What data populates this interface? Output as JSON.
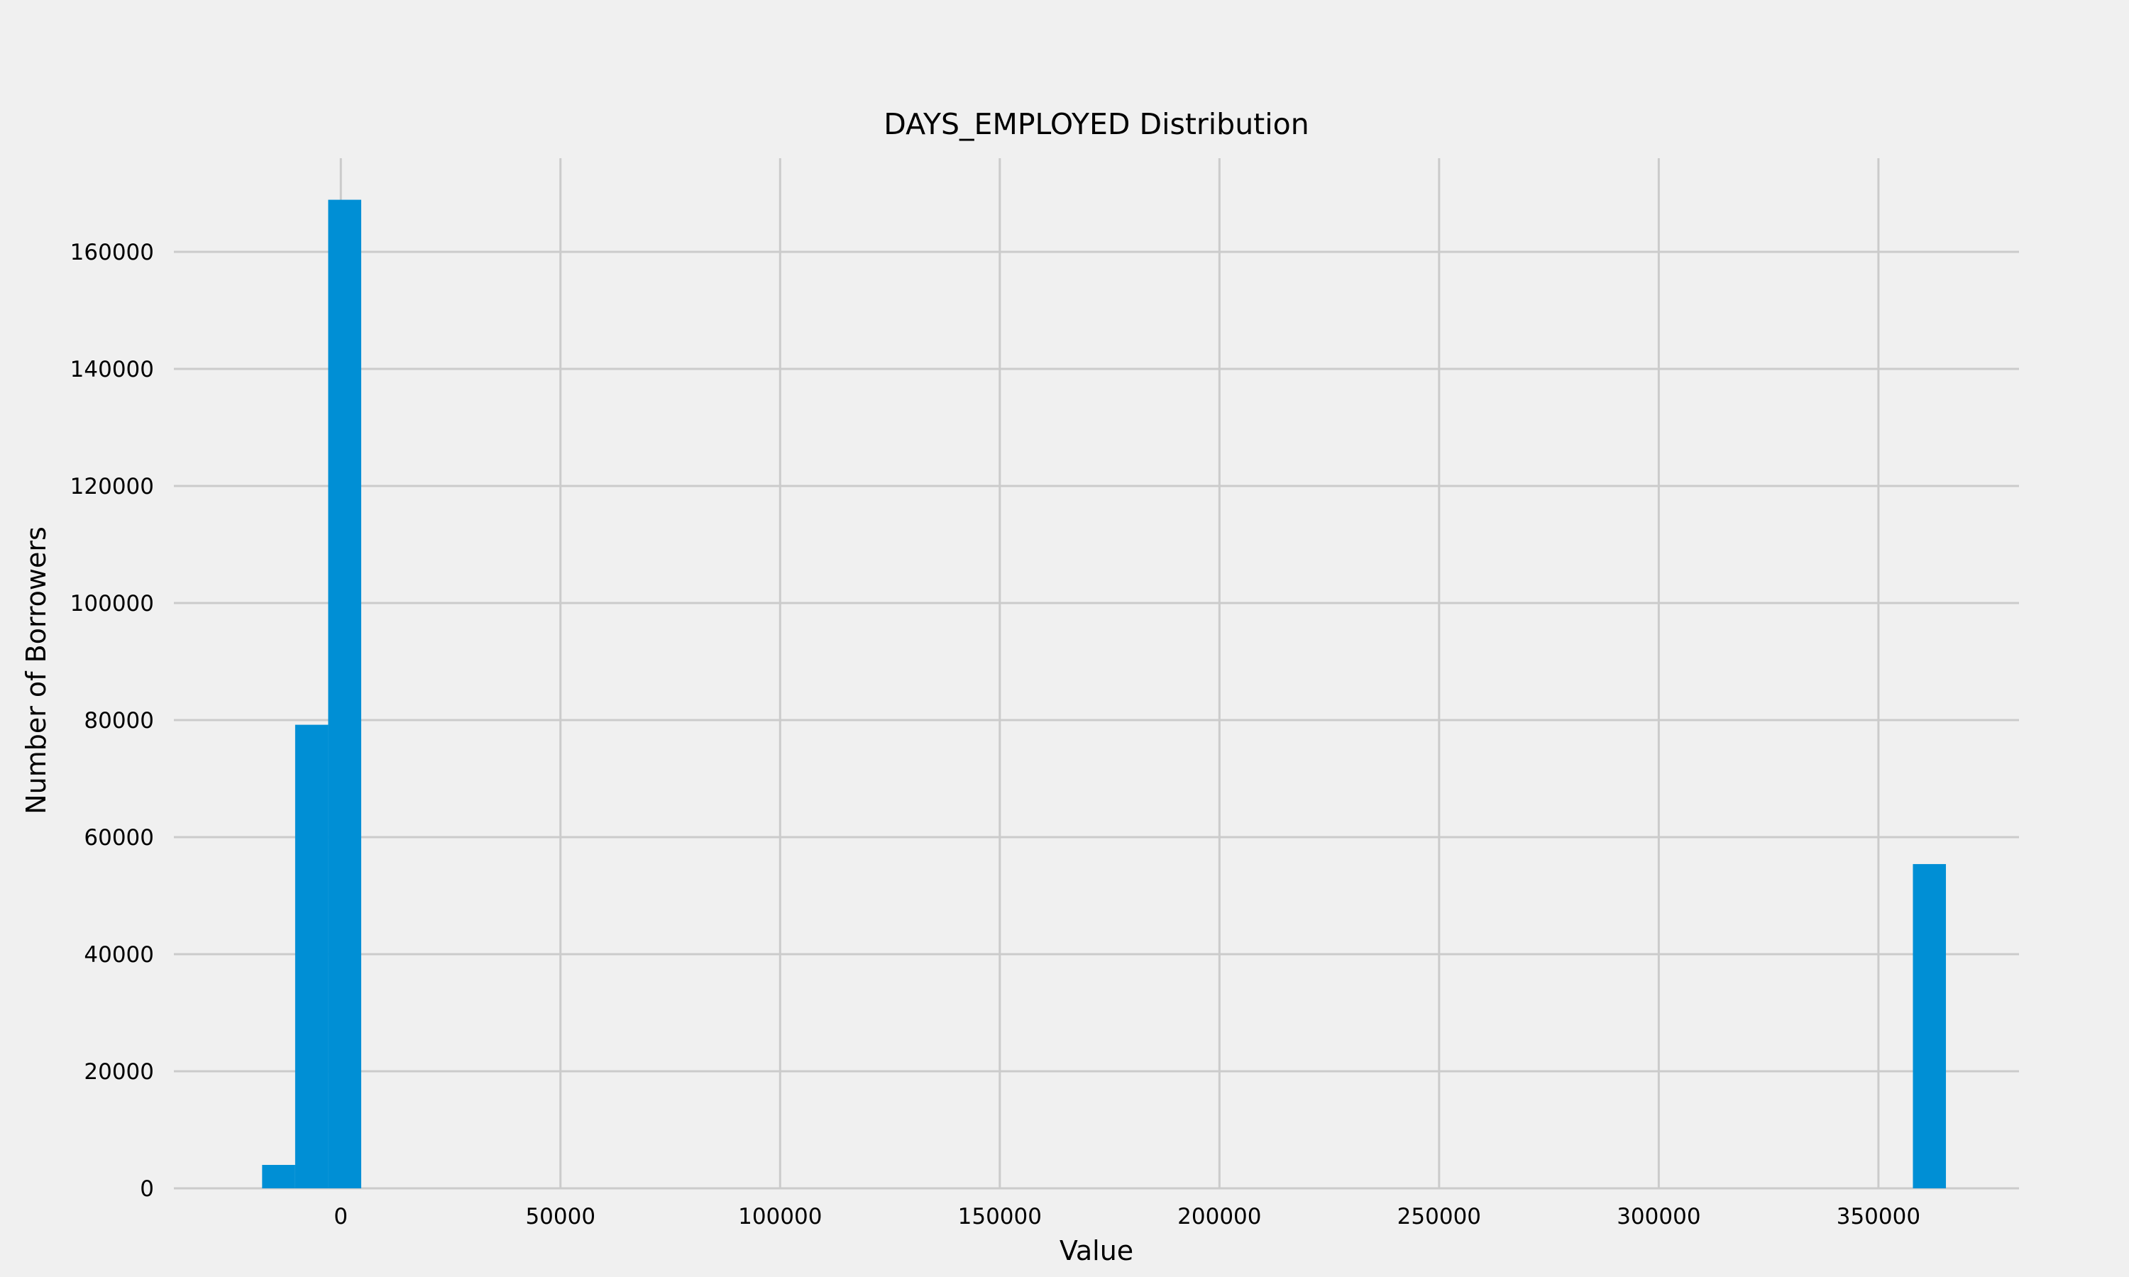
{
  "chart_data": {
    "type": "bar",
    "title": "DAYS_EMPLOYED Distribution",
    "xlabel": "Value",
    "ylabel": "Number of Borrowers",
    "xlim": [
      -38000,
      382000
    ],
    "ylim": [
      0,
      176000
    ],
    "x_ticks": [
      0,
      50000,
      100000,
      150000,
      200000,
      250000,
      300000,
      350000
    ],
    "y_ticks": [
      0,
      20000,
      40000,
      60000,
      80000,
      100000,
      120000,
      140000,
      160000
    ],
    "grid": true,
    "bar_color": "#008fd5",
    "bins": [
      {
        "x0": -17912,
        "x1": -10393,
        "count": 4000
      },
      {
        "x0": -10393,
        "x1": -2875,
        "count": 79200
      },
      {
        "x0": -2875,
        "x1": 4643,
        "count": 168900
      },
      {
        "x0": 357849,
        "x1": 365367,
        "count": 55400
      }
    ]
  }
}
